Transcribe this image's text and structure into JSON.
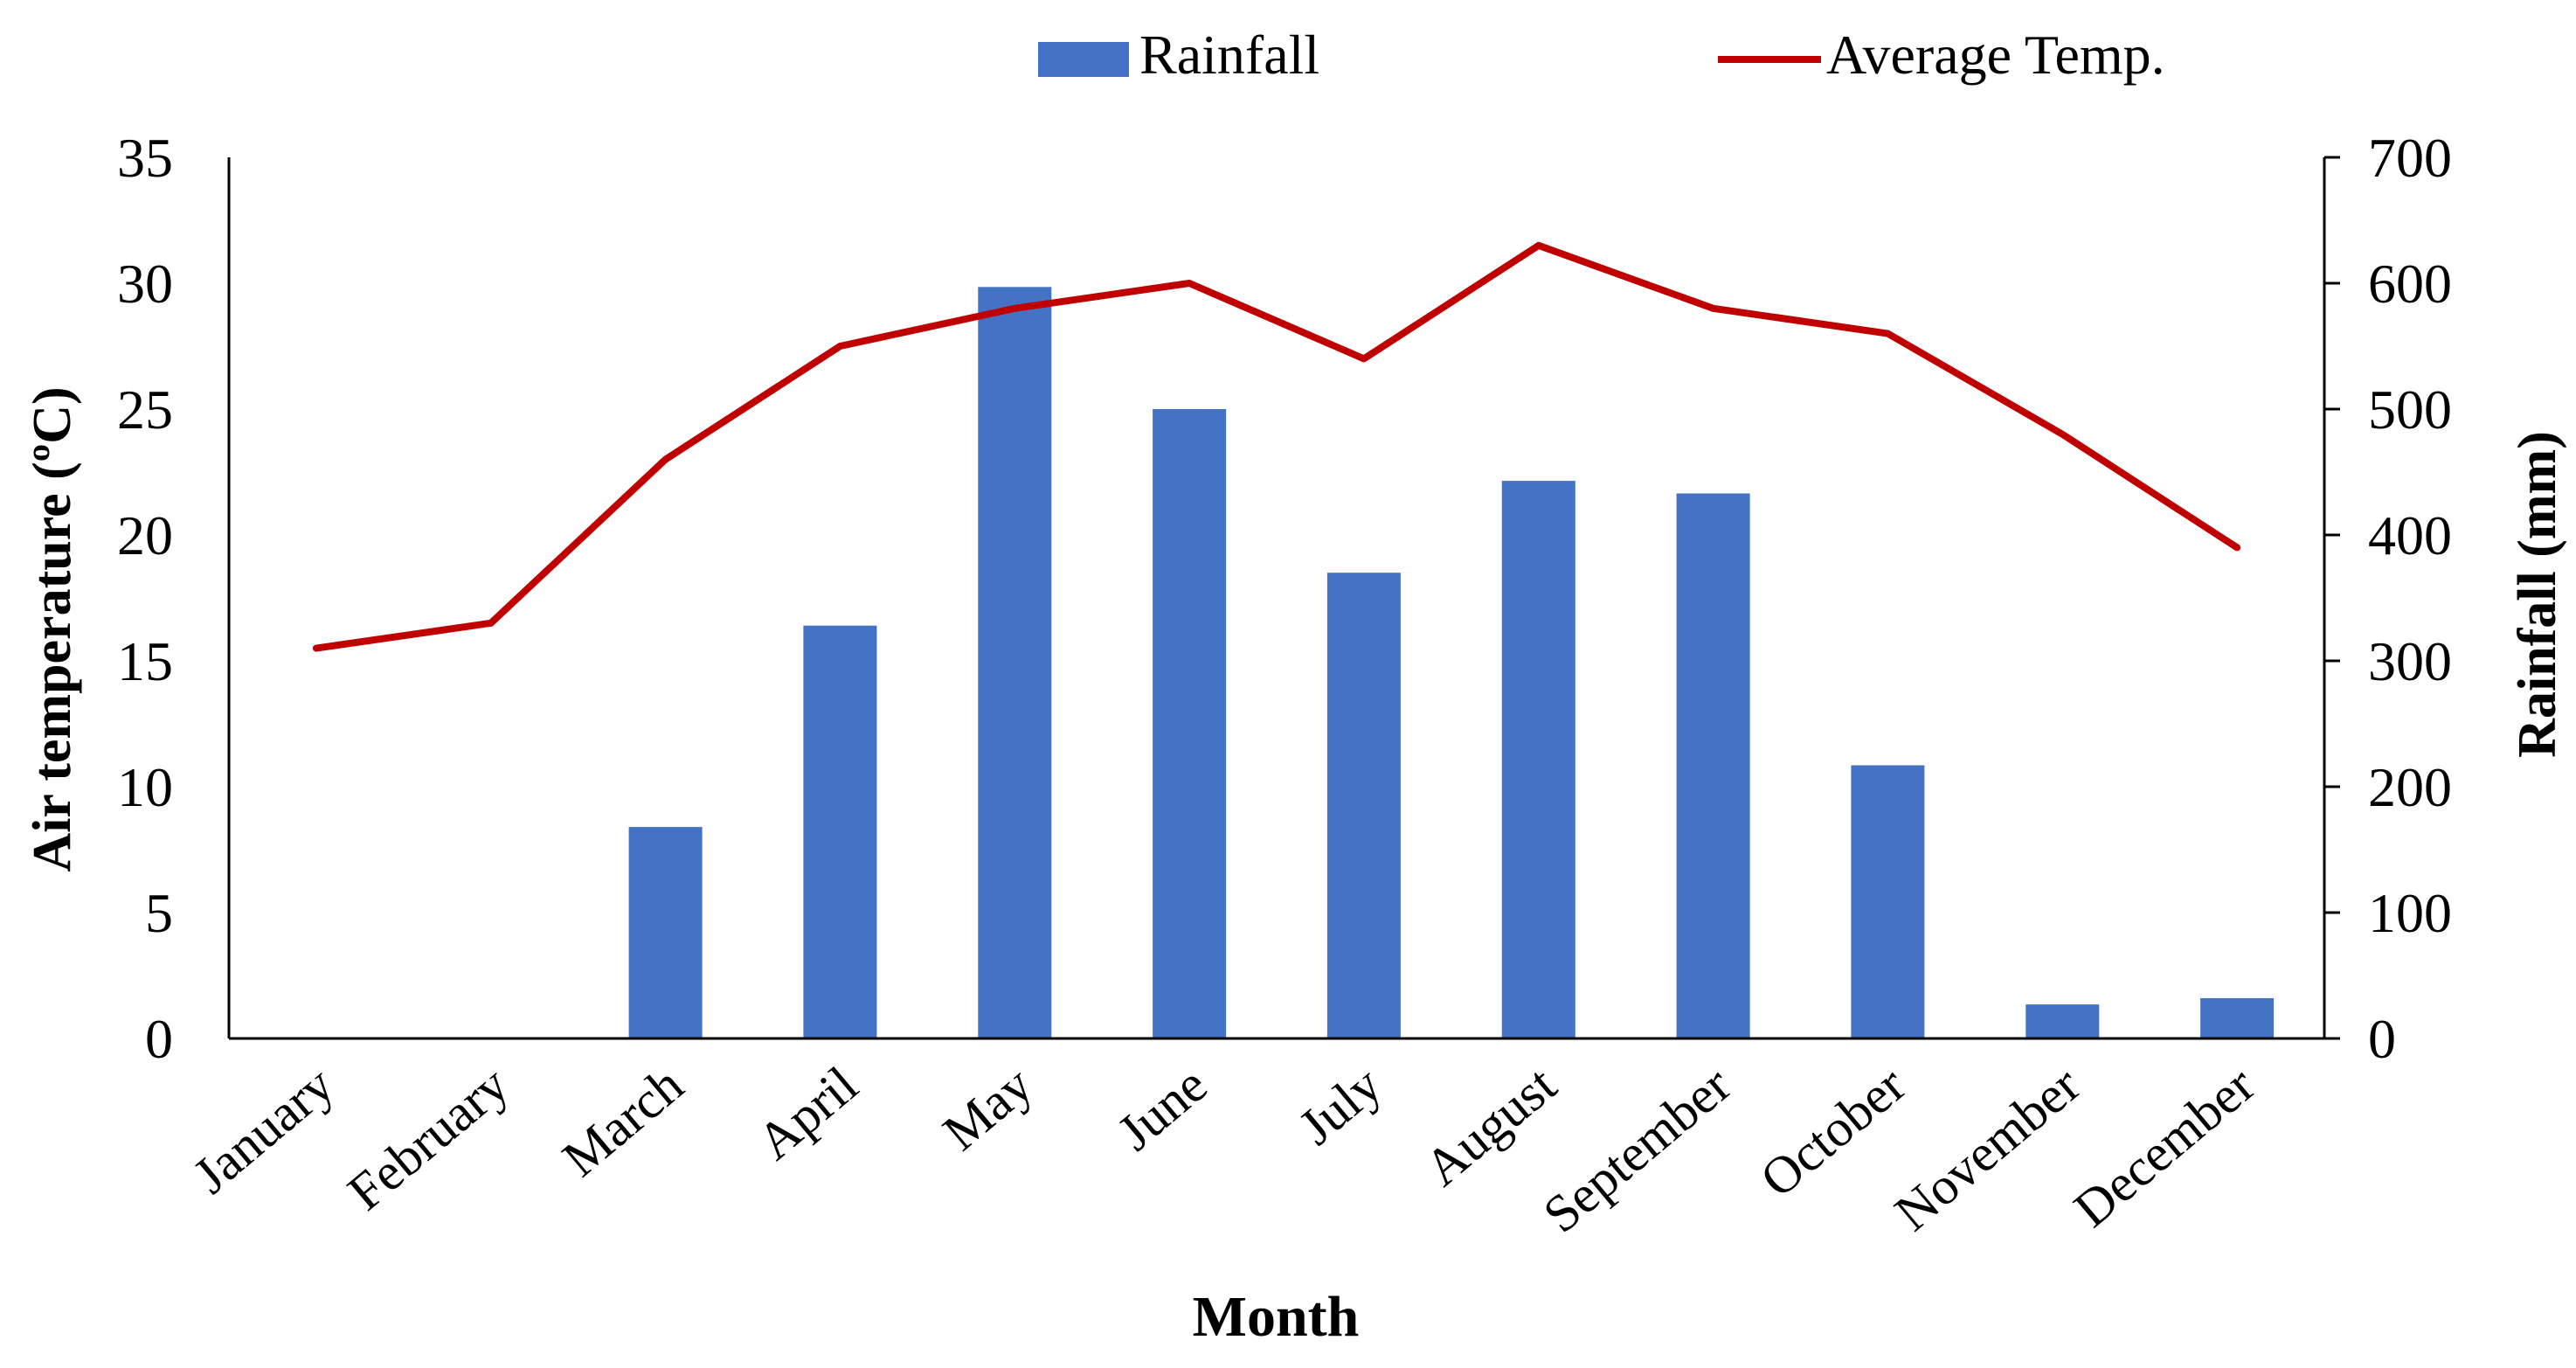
{
  "chart_data": {
    "type": "bar+line",
    "categories": [
      "January",
      "February",
      "March",
      "April",
      "May",
      "June",
      "July",
      "August",
      "September",
      "October",
      "November",
      "December"
    ],
    "series": [
      {
        "name": "Rainfall",
        "type": "bar",
        "axis": "right",
        "color": "#4472C4",
        "values": [
          0,
          1,
          168,
          328,
          597,
          500,
          370,
          443,
          433,
          217,
          27,
          32
        ]
      },
      {
        "name": "Average Temp.",
        "type": "line",
        "axis": "left",
        "color": "#C00000",
        "values": [
          15.5,
          16.5,
          23,
          27.5,
          29,
          30,
          27,
          31.5,
          29,
          28,
          24,
          19.5
        ]
      }
    ],
    "legend": {
      "position": "top",
      "items": [
        "Rainfall",
        "Average Temp."
      ]
    },
    "xlabel": "Month",
    "ylabel_left": "Air temperature (ºC)",
    "ylabel_right": "Rainfall (mm)",
    "ylim_left": [
      0,
      35
    ],
    "ylim_right": [
      0,
      700
    ],
    "yticks_left": [
      "0",
      "5",
      "10",
      "15",
      "20",
      "25",
      "30",
      "35"
    ],
    "yticks_right": [
      "0",
      "100",
      "200",
      "300",
      "400",
      "500",
      "600",
      "700"
    ],
    "grid": false
  }
}
